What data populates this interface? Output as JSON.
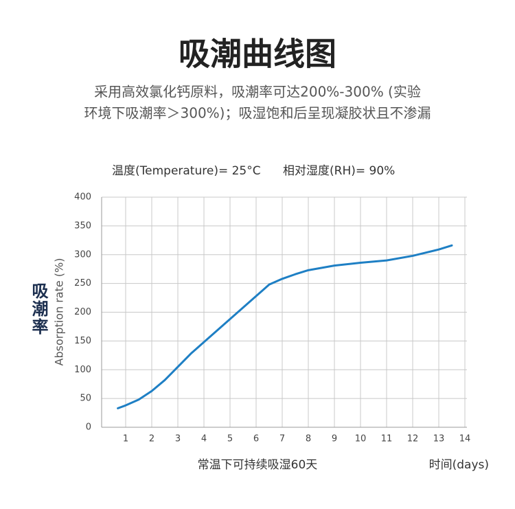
{
  "chart_data": {
    "type": "line",
    "title": "吸潮曲线图",
    "subtitle": [
      "采用高效氯化钙原料，吸潮率可达200%-300% (实验",
      "环境下吸潮率＞300%)；吸湿饱和后呈现凝胶状且不渗漏"
    ],
    "conditions": [
      "温度(Temperature)= 25°C",
      "相对湿度(RH)= 90%"
    ],
    "y_title": "吸潮率",
    "ylabel": "Absorption rate (%)",
    "xlabel_note": "常温下可持续吸湿60天",
    "xlabel": "时间(days)",
    "x": [
      0.7,
      1,
      1.5,
      2,
      2.5,
      3,
      3.5,
      4,
      4.5,
      5,
      5.5,
      6,
      6.5,
      7,
      7.5,
      8,
      9,
      10,
      11,
      12,
      13,
      13.5
    ],
    "series": [
      {
        "name": "吸潮率",
        "color": "#1e7fc4",
        "values": [
          33,
          38,
          48,
          63,
          82,
          105,
          128,
          148,
          168,
          188,
          208,
          228,
          248,
          258,
          266,
          273,
          281,
          286,
          290,
          298,
          309,
          316
        ]
      }
    ],
    "xlim": [
      0,
      14
    ],
    "xticks": [
      1,
      2,
      3,
      4,
      5,
      6,
      7,
      8,
      9,
      10,
      11,
      12,
      13,
      14
    ],
    "ylim": [
      0,
      400
    ],
    "yticks": [
      0,
      50,
      100,
      150,
      200,
      250,
      300,
      350,
      400
    ],
    "grid": true
  }
}
